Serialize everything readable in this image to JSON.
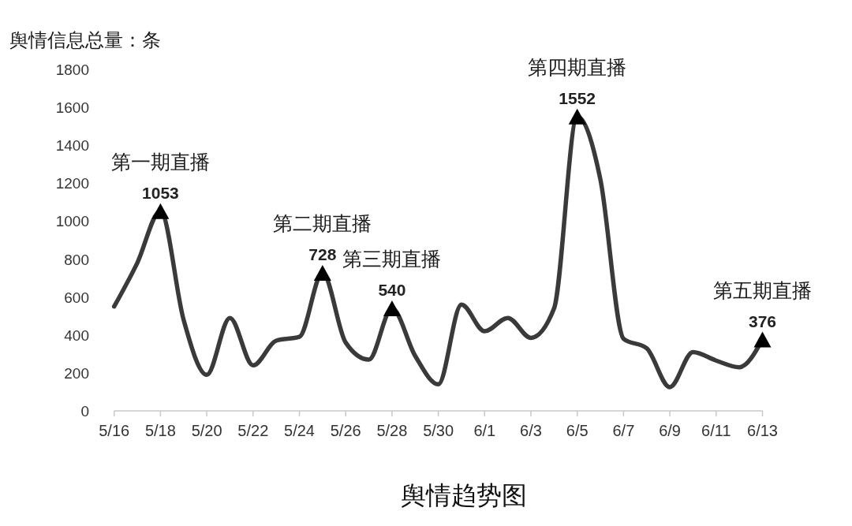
{
  "chart_data": {
    "type": "line",
    "title": "舆情趋势图",
    "ylabel": "舆情信息总量：条",
    "x": [
      "--05-16",
      "--05-17",
      "--05-18",
      "--05-19",
      "--05-20",
      "--05-21",
      "--05-22",
      "--05-23",
      "--05-24",
      "--05-25",
      "--05-26",
      "--05-27",
      "--05-28",
      "--05-29",
      "--05-30",
      "--05-31",
      "--06-01",
      "--06-02",
      "--06-03",
      "--06-04",
      "--06-05",
      "--06-06",
      "--06-07",
      "--06-08",
      "--06-09",
      "--06-10",
      "--06-11",
      "--06-12",
      "--06-13"
    ],
    "xlim": [
      "--05-16",
      "--06-13"
    ],
    "xticks": [
      {
        "value": "--05-16",
        "label": "5/16"
      },
      {
        "value": "--05-18",
        "label": "5/18"
      },
      {
        "value": "--05-20",
        "label": "5/20"
      },
      {
        "value": "--05-22",
        "label": "5/22"
      },
      {
        "value": "--05-24",
        "label": "5/24"
      },
      {
        "value": "--05-26",
        "label": "5/26"
      },
      {
        "value": "--05-28",
        "label": "5/28"
      },
      {
        "value": "--05-30",
        "label": "5/30"
      },
      {
        "value": "--06-01",
        "label": "6/1"
      },
      {
        "value": "--06-03",
        "label": "6/3"
      },
      {
        "value": "--06-05",
        "label": "6/5"
      },
      {
        "value": "--06-07",
        "label": "6/7"
      },
      {
        "value": "--06-09",
        "label": "6/9"
      },
      {
        "value": "--06-11",
        "label": "6/11"
      },
      {
        "value": "--06-13",
        "label": "6/13"
      }
    ],
    "ylim": [
      0,
      1800
    ],
    "yticks": [
      0,
      200,
      400,
      600,
      800,
      1000,
      1200,
      1400,
      1600,
      1800
    ],
    "series": [
      {
        "type": "line",
        "color": "#3a3a3a",
        "values": [
          550,
          780,
          1053,
          480,
          190,
          490,
          240,
          370,
          390,
          728,
          360,
          270,
          540,
          290,
          140,
          560,
          420,
          490,
          385,
          540,
          1552,
          1220,
          380,
          330,
          125,
          310,
          265,
          230,
          376
        ]
      },
      {
        "type": "scatter",
        "color": "#000000",
        "marker": "triangle",
        "x": [
          "--05-18",
          "--05-25",
          "--05-28",
          "--06-05",
          "--06-13"
        ],
        "values": [
          1053,
          728,
          540,
          1552,
          376
        ],
        "value_labels": [
          "1053",
          "728",
          "540",
          "1552",
          "376"
        ]
      }
    ],
    "annotations": [
      {
        "text": "第一期直播",
        "x": "--05-18",
        "y": 1053
      },
      {
        "text": "第二期直播",
        "x": "--05-25",
        "y": 728
      },
      {
        "text": "第三期直播",
        "x": "--05-28",
        "y": 540
      },
      {
        "text": "第四期直播",
        "x": "--06-05",
        "y": 1552
      },
      {
        "text": "第五期直播",
        "x": "--06-13",
        "y": 376
      }
    ]
  }
}
